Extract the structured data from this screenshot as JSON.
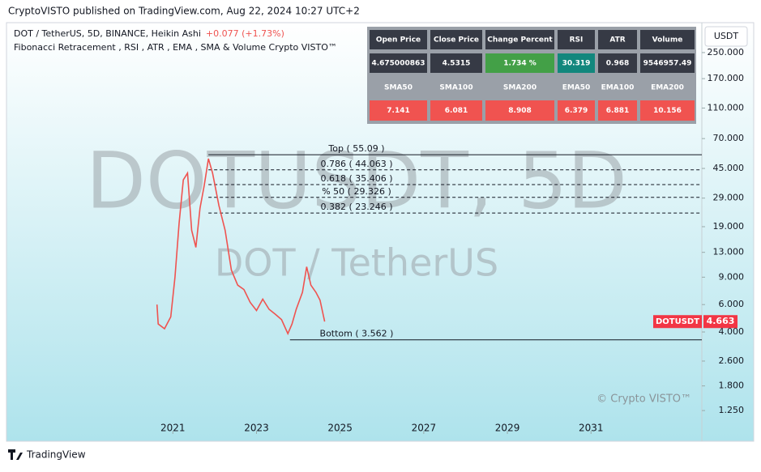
{
  "header": "CryptoVISTO published on TradingView.com, Aug 22, 2024 10:27 UTC+2",
  "footer": "TradingView",
  "chart_data": {
    "type": "line",
    "title": "DOT / TetherUS, 5D, BINANCE, Heikin Ashi",
    "change": "+0.077 (+1.73%)",
    "subtitle": "Fibonacci Retracement , RSI , ATR , EMA , SMA & Volume Crypto VISTO™",
    "watermark": "DOTUSDT, 5D",
    "watermark_sub": "DOT / TetherUS",
    "copyright": "© Crypto VISTO™",
    "currency": "USDT",
    "log_scale": true,
    "x": [
      2020.62,
      2020.65,
      2020.8,
      2020.95,
      2021.05,
      2021.15,
      2021.25,
      2021.35,
      2021.45,
      2021.55,
      2021.65,
      2021.75,
      2021.85,
      2021.95,
      2022.1,
      2022.25,
      2022.4,
      2022.55,
      2022.7,
      2022.85,
      2023.0,
      2023.15,
      2023.3,
      2023.45,
      2023.6,
      2023.75,
      2023.85,
      2023.95,
      2024.1,
      2024.2,
      2024.3,
      2024.42,
      2024.52,
      2024.63
    ],
    "series": [
      {
        "name": "DOTUSDT",
        "color": "#ef5350",
        "values": [
          6,
          4.5,
          4.2,
          5.0,
          9,
          20,
          38,
          42,
          18,
          14,
          25,
          35,
          52,
          42,
          26,
          18,
          10,
          8,
          7.5,
          6.2,
          5.5,
          6.5,
          5.6,
          5.2,
          4.8,
          3.9,
          4.5,
          5.6,
          7.2,
          10.5,
          8.0,
          7.2,
          6.4,
          4.663
        ]
      }
    ],
    "last_value": 4.663,
    "last_value_label": "4.663",
    "xlim": [
      2017.06,
      2033.65
    ],
    "xticks": [
      2021,
      2023,
      2025,
      2027,
      2029,
      2031
    ],
    "ylim": [
      0.95,
      380
    ],
    "yticks": [
      {
        "value": 1.25,
        "label": "1.250"
      },
      {
        "value": 1.8,
        "label": "1.800"
      },
      {
        "value": 2.6,
        "label": "2.600"
      },
      {
        "value": 4,
        "label": "4.000"
      },
      {
        "value": 6,
        "label": "6.000"
      },
      {
        "value": 9,
        "label": "9.000"
      },
      {
        "value": 13,
        "label": "13.000"
      },
      {
        "value": 19,
        "label": "19.000"
      },
      {
        "value": 29,
        "label": "29.000"
      },
      {
        "value": 45,
        "label": "45.000"
      },
      {
        "value": 70,
        "label": "70.000"
      },
      {
        "value": 110,
        "label": "110.000"
      },
      {
        "value": 170,
        "label": "170.000"
      },
      {
        "value": 250,
        "label": "250.000"
      }
    ],
    "fib_levels": [
      {
        "label": "Top ( 55.09 )",
        "value": 55.09,
        "x": 2021.85,
        "style": "solid"
      },
      {
        "label": "0.786 ( 44.063 )",
        "value": 44.063,
        "x": 2021.85,
        "style": "dashed"
      },
      {
        "label": "0.618 ( 35.406 )",
        "value": 35.406,
        "x": 2021.85,
        "style": "dashed"
      },
      {
        "label": "% 50 ( 29.326 )",
        "value": 29.326,
        "x": 2021.85,
        "style": "dashed"
      },
      {
        "label": "0.382 ( 23.246 )",
        "value": 23.246,
        "x": 2021.85,
        "style": "dashed"
      },
      {
        "label": "Bottom ( 3.562 )",
        "value": 3.562,
        "x": 2023.8,
        "style": "solid"
      }
    ]
  },
  "table": {
    "rows": [
      [
        "Open Price",
        "Close Price",
        "Change Percent",
        "RSI",
        "ATR",
        "Volume"
      ],
      [
        "4.675000863",
        "4.5315",
        "1.734 %",
        "30.319",
        "0.968",
        "9546957.49"
      ],
      [
        "SMA50",
        "SMA100",
        "SMA200",
        "EMA50",
        "EMA100",
        "EMA200"
      ],
      [
        "7.141",
        "6.081",
        "8.908",
        "6.379",
        "6.881",
        "10.156"
      ]
    ]
  }
}
